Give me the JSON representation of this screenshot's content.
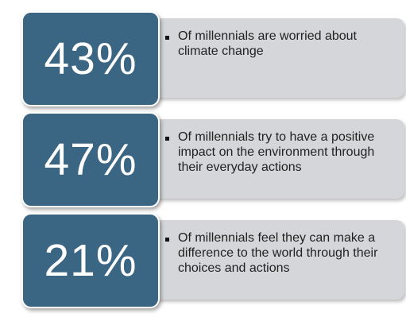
{
  "colors": {
    "stat_box": "#3a6683",
    "description_panel": "#d4d6d9",
    "value_text": "#ffffff",
    "description_text": "#222222"
  },
  "stats": [
    {
      "value": "43%",
      "description": "Of millennials are worried about climate change"
    },
    {
      "value": "47%",
      "description": "Of millennials try to have a positive impact on the environment through their everyday actions"
    },
    {
      "value": "21%",
      "description": "Of millennials feel they can make a difference to the world through their choices and actions"
    }
  ]
}
